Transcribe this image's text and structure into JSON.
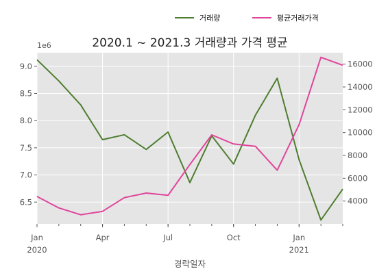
{
  "chart_data": {
    "type": "line",
    "title": "2020.1 ~ 2021.3 거래량과 가격 평균",
    "xlabel": "경락일자",
    "y_offset_label": "1e6",
    "x": [
      "2020-01",
      "2020-02",
      "2020-03",
      "2020-04",
      "2020-05",
      "2020-06",
      "2020-07",
      "2020-08",
      "2020-09",
      "2020-10",
      "2020-11",
      "2020-12",
      "2021-01",
      "2021-02",
      "2021-03"
    ],
    "x_tick_labels": [
      {
        "x": "2020-01",
        "label": "Jan",
        "sublabel": "2020"
      },
      {
        "x": "2020-04",
        "label": "Apr",
        "sublabel": ""
      },
      {
        "x": "2020-07",
        "label": "Jul",
        "sublabel": ""
      },
      {
        "x": "2020-10",
        "label": "Oct",
        "sublabel": ""
      },
      {
        "x": "2021-01",
        "label": "Jan",
        "sublabel": "2021"
      }
    ],
    "y_left": {
      "range": [
        6.1,
        9.25
      ],
      "ticks": [
        6.5,
        7.0,
        7.5,
        8.0,
        8.5,
        9.0
      ],
      "tick_labels": [
        "6.5",
        "7.0",
        "7.5",
        "8.0",
        "8.5",
        "9.0"
      ]
    },
    "y_right": {
      "range": [
        2000,
        17000
      ],
      "ticks": [
        4000,
        6000,
        8000,
        10000,
        12000,
        14000,
        16000
      ],
      "tick_labels": [
        "4000",
        "6000",
        "8000",
        "10000",
        "12000",
        "14000",
        "16000"
      ]
    },
    "series": [
      {
        "name": "거래량",
        "axis": "left",
        "color": "#4e7d2f",
        "values": [
          9.12,
          8.73,
          8.29,
          7.65,
          7.74,
          7.47,
          7.79,
          6.86,
          7.72,
          7.2,
          8.1,
          8.78,
          7.28,
          6.17,
          6.74
        ]
      },
      {
        "name": "평균거래가격",
        "axis": "right",
        "color": "#e0449a",
        "values": [
          4400,
          3400,
          2800,
          3100,
          4300,
          4700,
          4500,
          7200,
          9800,
          9000,
          8800,
          6700,
          10700,
          16600,
          15900
        ]
      }
    ],
    "grid": true,
    "legend_position": "top-right"
  }
}
